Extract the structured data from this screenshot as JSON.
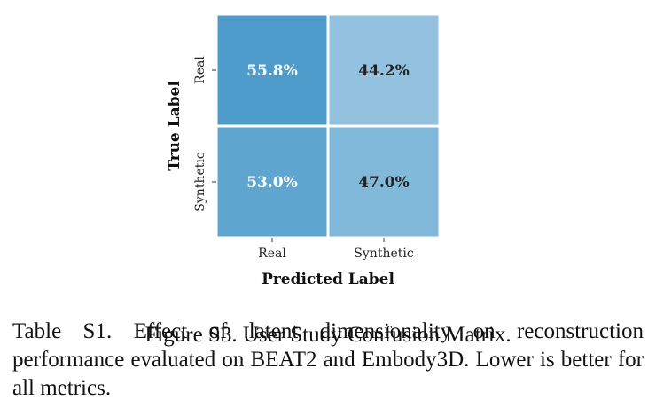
{
  "chart_data": {
    "type": "heatmap",
    "xlabel": "Predicted Label",
    "ylabel": "True Label",
    "x_categories": [
      "Real",
      "Synthetic"
    ],
    "y_categories": [
      "Real",
      "Synthetic"
    ],
    "values": [
      [
        55.8,
        44.2
      ],
      [
        53.0,
        47.0
      ]
    ],
    "cell_labels": [
      [
        "55.8%",
        "44.2%"
      ],
      [
        "53.0%",
        "47.0%"
      ]
    ],
    "colormap": "Blues",
    "colors": {
      "low": "#a9cfe5",
      "high": "#4d9ccb",
      "light_text": "#ffffff",
      "dark_text": "#222222",
      "gridline": "#ffffff"
    }
  },
  "captions": {
    "figure": "Figure S3. User Study Confusion Matrix.",
    "table": "Table S1. Effect of latent dimensionality on reconstruction performance evaluated on BEAT2 and Embody3D. Lower is better for all metrics."
  }
}
